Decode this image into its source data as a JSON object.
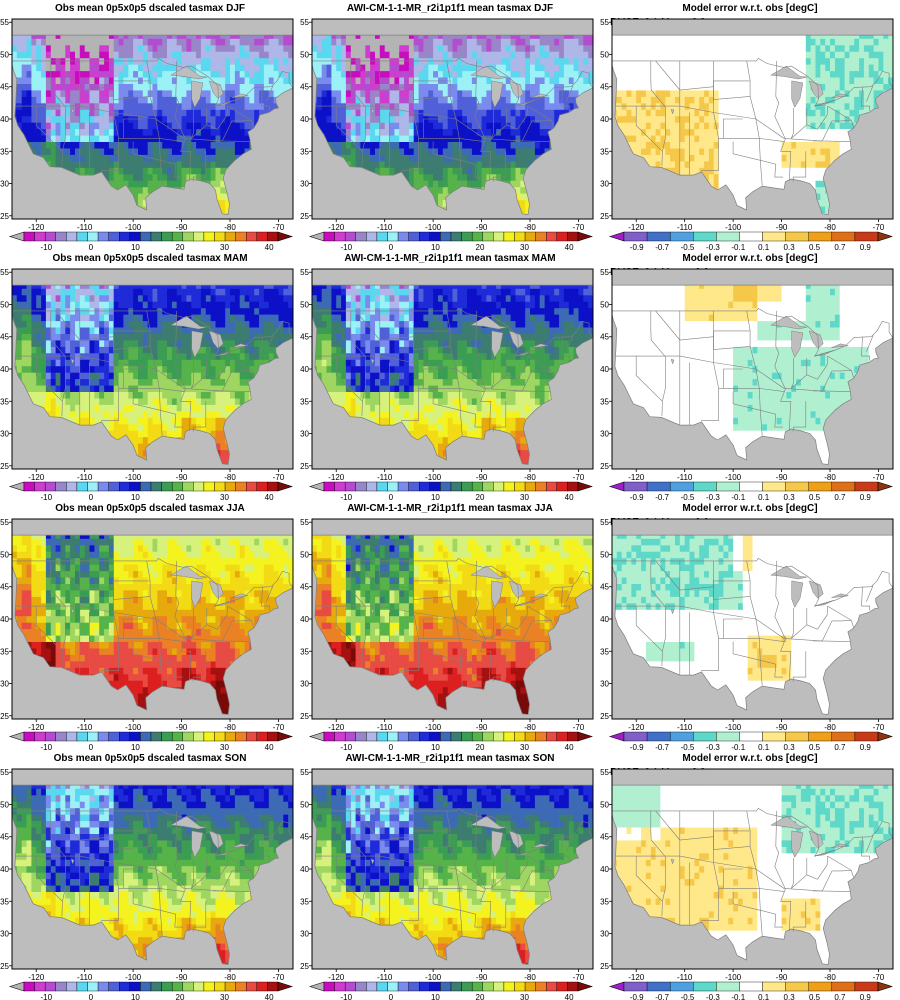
{
  "figure": {
    "colors": {
      "land_no_data": "#bdbdbd",
      "border": "#7f7f7f",
      "frame": "#000000"
    },
    "scales": {
      "abs": {
        "colors": [
          "#b4b4b4",
          "#c80dbf",
          "#d03cd0",
          "#b54ccf",
          "#9986c8",
          "#aeb7e8",
          "#5ad8f0",
          "#9cf1f7",
          "#7a8bed",
          "#5060d8",
          "#1f2bd8",
          "#0c11c8",
          "#3d6ab4",
          "#3d7c70",
          "#3b9d53",
          "#56b34a",
          "#9ed661",
          "#d7f27c",
          "#f4f31f",
          "#f2db15",
          "#e6aa0c",
          "#ea8225",
          "#e84b44",
          "#dc2020",
          "#a51010",
          "#7a0a0a"
        ],
        "tick_labels": [
          "-10",
          "0",
          "10",
          "20",
          "30",
          "40"
        ],
        "tick_values": [
          -10,
          0,
          10,
          20,
          30,
          40
        ],
        "range": [
          -15,
          42
        ]
      },
      "err": {
        "colors": [
          "#a020c8",
          "#8060c8",
          "#4070c8",
          "#50a0e0",
          "#5ed8c8",
          "#b0f0d0",
          "#ffffff",
          "#ffe88a",
          "#f6c84a",
          "#f0a018",
          "#e07018",
          "#c83a18",
          "#8c3410"
        ],
        "tick_labels": [
          "-0.9",
          "-0.7",
          "-0.5",
          "-0.3",
          "-0.1",
          "0.1",
          "0.3",
          "0.5",
          "0.7",
          "0.9"
        ],
        "tick_values": [
          -0.9,
          -0.7,
          -0.5,
          -0.3,
          -0.1,
          0.1,
          0.3,
          0.5,
          0.7,
          0.9
        ],
        "range": [
          -1.0,
          1.0
        ]
      }
    },
    "lon_ticks": [
      "-120",
      "-110",
      "-100",
      "-90",
      "-80",
      "-70"
    ],
    "lat_ticks": [
      "25",
      "30",
      "35",
      "40",
      "45",
      "50",
      "55"
    ],
    "panels": [
      {
        "title": "Obs mean 0p5x0p5 dscaled tasmax DJF",
        "stats": "",
        "season": "DJF",
        "kind": "obs"
      },
      {
        "title": "AWI-CM-1-1-MR_r2i1p1f1 mean tasmax DJF",
        "stats": "",
        "season": "DJF",
        "kind": "model"
      },
      {
        "title": "Model error w.r.t. obs [degC]",
        "stats": "RMSE: 0.1  Mean: 0.0",
        "season": "DJF",
        "kind": "err"
      },
      {
        "title": "Obs mean 0p5x0p5 dscaled tasmax MAM",
        "stats": "",
        "season": "MAM",
        "kind": "obs"
      },
      {
        "title": "AWI-CM-1-1-MR_r2i1p1f1 mean tasmax MAM",
        "stats": "",
        "season": "MAM",
        "kind": "model"
      },
      {
        "title": "Model error w.r.t. obs [degC]",
        "stats": "RMSE: 0.1  Mean: -0.0",
        "season": "MAM",
        "kind": "err"
      },
      {
        "title": "Obs mean 0p5x0p5 dscaled tasmax JJA",
        "stats": "",
        "season": "JJA",
        "kind": "obs"
      },
      {
        "title": "AWI-CM-1-1-MR_r2i1p1f1 mean tasmax JJA",
        "stats": "",
        "season": "JJA",
        "kind": "model"
      },
      {
        "title": "Model error w.r.t. obs [degC]",
        "stats": "RMSE: 0.1  Mean: -0.0",
        "season": "JJA",
        "kind": "err"
      },
      {
        "title": "Obs mean 0p5x0p5 dscaled tasmax SON",
        "stats": "",
        "season": "SON",
        "kind": "obs"
      },
      {
        "title": "AWI-CM-1-1-MR_r2i1p1f1 mean tasmax SON",
        "stats": "",
        "season": "SON",
        "kind": "model"
      },
      {
        "title": "Model error w.r.t. obs [degC]",
        "stats": "RMSE: 0.1  Mean: 0.0",
        "season": "SON",
        "kind": "err"
      }
    ]
  }
}
